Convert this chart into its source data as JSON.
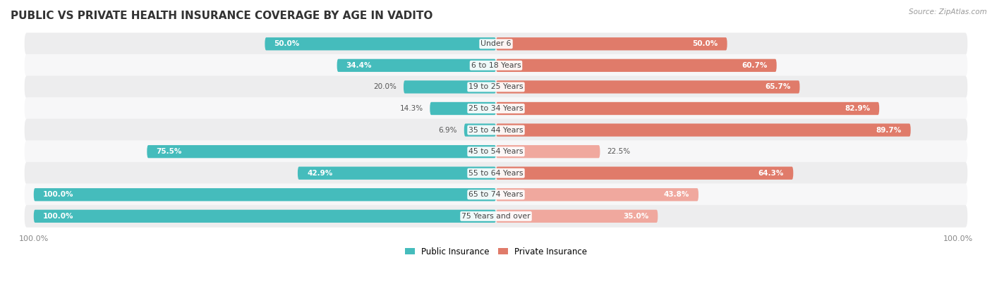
{
  "title": "PUBLIC VS PRIVATE HEALTH INSURANCE COVERAGE BY AGE IN VADITO",
  "source": "Source: ZipAtlas.com",
  "categories": [
    "Under 6",
    "6 to 18 Years",
    "19 to 25 Years",
    "25 to 34 Years",
    "35 to 44 Years",
    "45 to 54 Years",
    "55 to 64 Years",
    "65 to 74 Years",
    "75 Years and over"
  ],
  "public_values": [
    50.0,
    34.4,
    20.0,
    14.3,
    6.9,
    75.5,
    42.9,
    100.0,
    100.0
  ],
  "private_values": [
    50.0,
    60.7,
    65.7,
    82.9,
    89.7,
    22.5,
    64.3,
    43.8,
    35.0
  ],
  "public_color": "#45bcbc",
  "private_color_high": "#e07b6a",
  "private_color_low": "#f0a89e",
  "public_label": "Public Insurance",
  "private_label": "Private Insurance",
  "row_bg_color_odd": "#ededee",
  "row_bg_color_even": "#f7f7f8",
  "title_fontsize": 11,
  "max_value": 100.0,
  "xlim_left": -105,
  "xlim_right": 105
}
